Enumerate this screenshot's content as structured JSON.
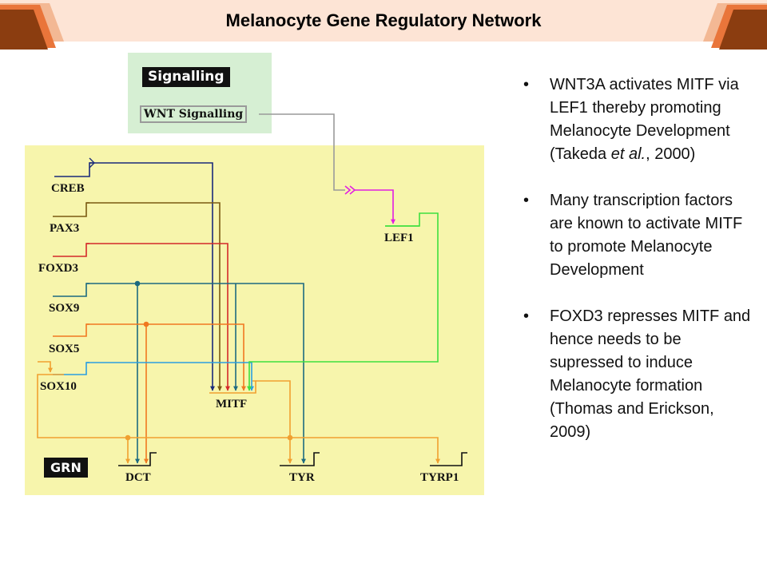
{
  "slide": {
    "title": "Melanocyte Gene Regulatory Network"
  },
  "signalling": {
    "label": "Signalling",
    "wnt": "WNT Signalling"
  },
  "grn": {
    "label": "GRN",
    "regulators": [
      "CREB",
      "PAX3",
      "FOXD3",
      "SOX9",
      "SOX5",
      "SOX10"
    ],
    "targets": {
      "lef1": "LEF1",
      "mitf": "MITF",
      "dct": "DCT",
      "tyr": "TYR",
      "tyrp1": "TYRP1"
    }
  },
  "colors": {
    "header_bg": "#fde4d5",
    "corner_brown": "#8b3d10",
    "corner_orange": "#e9753a",
    "signal_bg": "#d6efd3",
    "grn_bg": "#f7f5ac",
    "creb": "#1a2a7a",
    "pax3": "#7a5a12",
    "foxd3": "#d42a2a",
    "sox9": "#1d6a80",
    "sox5": "#f07820",
    "sox10": "#2b9fe0",
    "mitf": "#f0a030",
    "lef1": "#3ee03e",
    "wnt": "#9a9a9a",
    "magenta": "#e21ee2"
  },
  "notes": [
    {
      "before": "WNT3A activates MITF via LEF1 thereby promoting Melanocyte Development (Takeda ",
      "italic": "et al.",
      "after": ", 2000)"
    },
    {
      "before": "Many transcription factors are known to activate MITF to promote Melanocyte Development",
      "italic": "",
      "after": ""
    },
    {
      "before": "FOXD3 represses MITF and hence needs to be supressed to induce Melanocyte formation (Thomas and Erickson, 2009)",
      "italic": "",
      "after": ""
    }
  ]
}
